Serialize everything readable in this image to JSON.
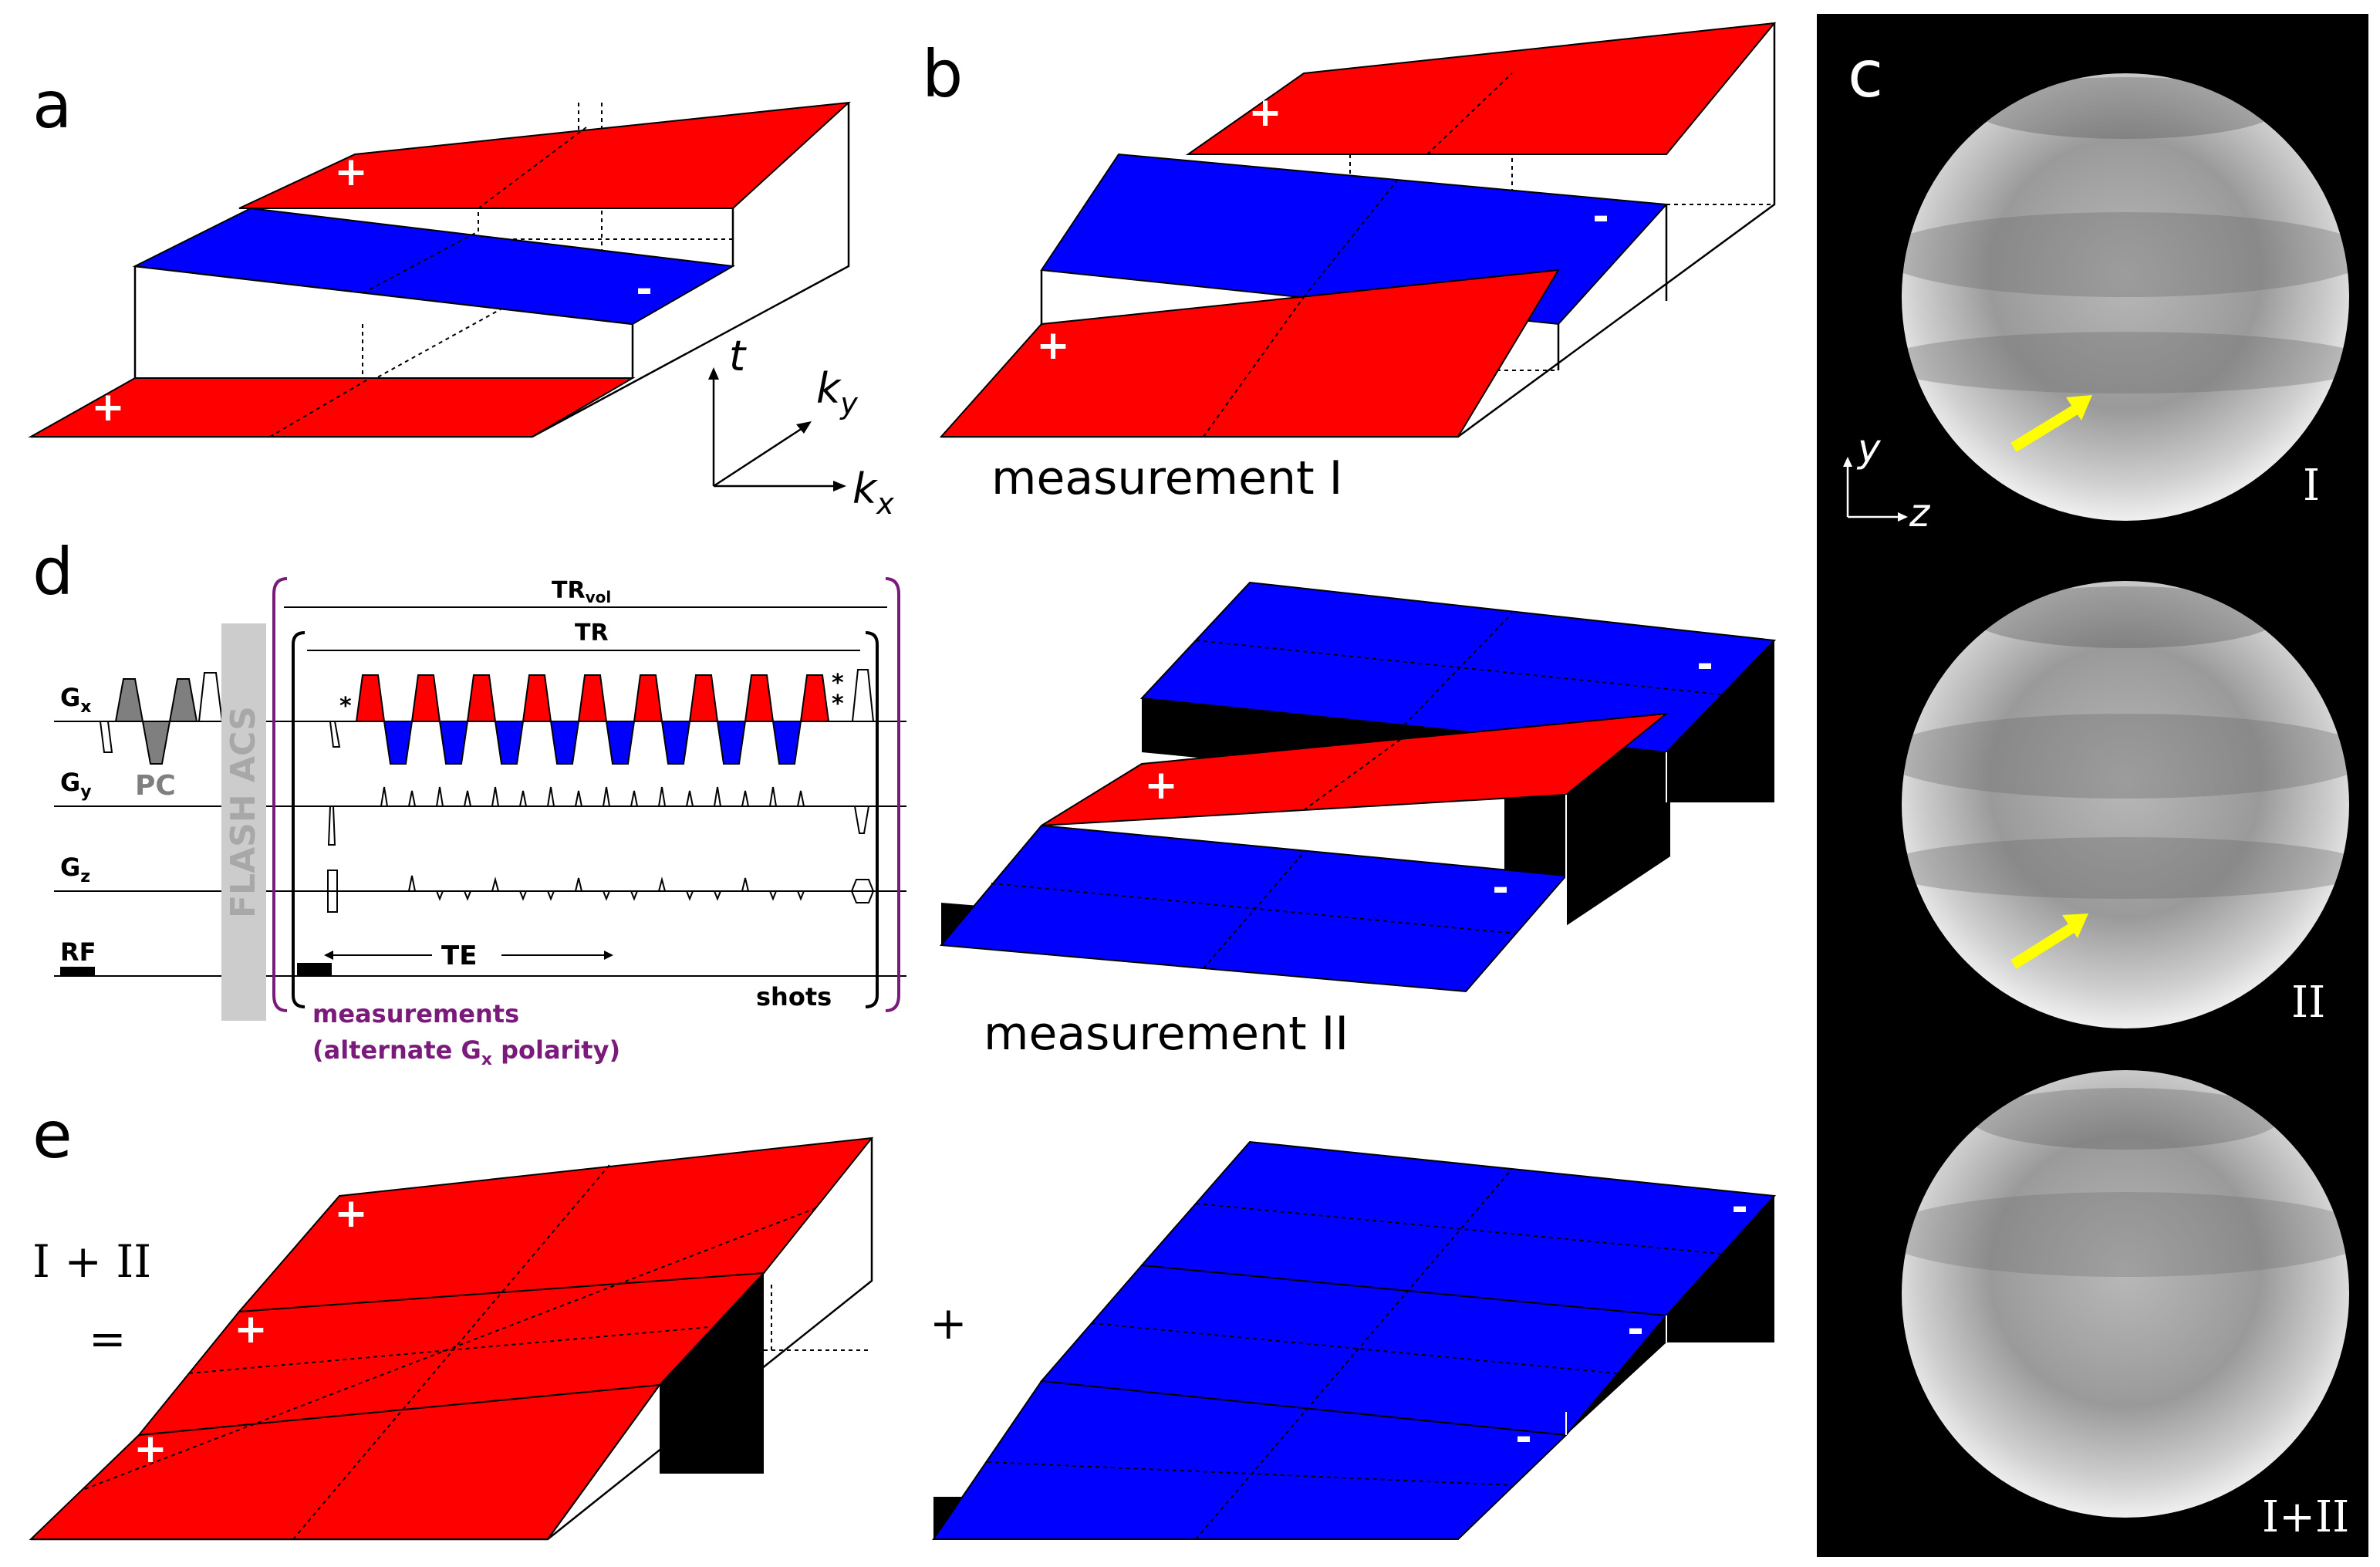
{
  "panels": {
    "a": {
      "letter": "a"
    },
    "b": {
      "letter": "b",
      "caption": "measurement I"
    },
    "b2": {
      "caption": "measurement II"
    },
    "c": {
      "letter": "c",
      "labels": [
        "I",
        "II",
        "I+II"
      ],
      "axis_y": "y",
      "axis_z": "z"
    },
    "d": {
      "letter": "d"
    },
    "e": {
      "letter": "e",
      "eq_line1": "I + II",
      "eq_line2": "=",
      "plus": "+"
    }
  },
  "signs": {
    "plus": "+",
    "minus": "-"
  },
  "axes": {
    "t": "t",
    "ky": "k",
    "ky_sub": "y",
    "kx": "k",
    "kx_sub": "x"
  },
  "sequence": {
    "trvol": "TR",
    "trvol_sub": "vol",
    "tr": "TR",
    "gx": "G",
    "gx_sub": "x",
    "gy": "G",
    "gy_sub": "y",
    "gz": "G",
    "gz_sub": "z",
    "rf": "RF",
    "pc": "PC",
    "flash": "FLASH ACS",
    "te": "TE",
    "shots": "shots",
    "meas_line1": "measurements",
    "meas_line2a": "(alternate G",
    "meas_line2_sub": "x",
    "meas_line2b": " polarity)",
    "asterisk": "*"
  },
  "colors": {
    "red": "#ff0000",
    "blue": "#0000ff",
    "purple": "#7a1a7a",
    "grey": "#7f7f7f",
    "yellow": "#ffff00"
  }
}
